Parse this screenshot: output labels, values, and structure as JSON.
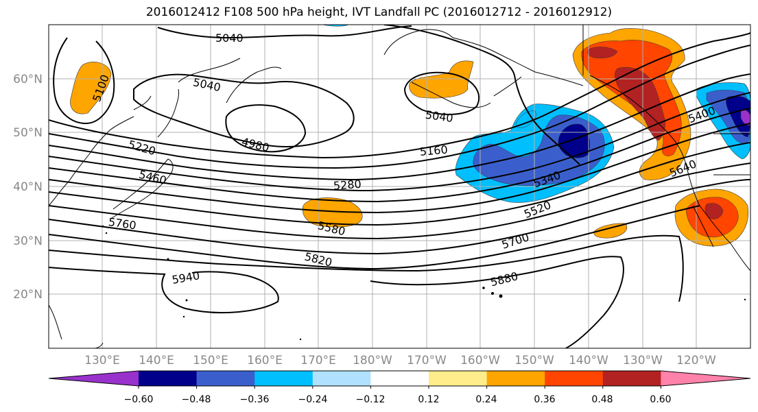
{
  "title": "2016012412 F108 500 hPa height, IVT Landfall PC (2016012712 - 2016012912)",
  "latitude_labels": [
    "60°N",
    "50°N",
    "40°N",
    "30°N",
    "20°N"
  ],
  "longitude_labels": [
    "130°E",
    "140°E",
    "150°E",
    "160°E",
    "170°E",
    "180°W",
    "170°W",
    "160°W",
    "150°W",
    "140°W",
    "130°W",
    "120°W"
  ],
  "contour_labels": [
    "5040",
    "5100",
    "5040",
    "5040",
    "4980",
    "5220",
    "5160",
    "5400",
    "5460",
    "5280",
    "5340",
    "5640",
    "5760",
    "5520",
    "5580",
    "5700",
    "5820",
    "5880",
    "5940"
  ],
  "colorbar": {
    "ticks": [
      "−0.60",
      "−0.48",
      "−0.36",
      "−0.24",
      "−0.12",
      "0.12",
      "0.24",
      "0.36",
      "0.48",
      "0.60"
    ],
    "colors": [
      "#9932cc",
      "#00008b",
      "#3a5fcd",
      "#00bfff",
      "#b0e2ff",
      "#ffffff",
      "#ffec8b",
      "#ffa500",
      "#ff4500",
      "#b22222",
      "#ff82ab"
    ]
  },
  "colors": {
    "grid": "#b0b0b0",
    "contour": "#000000",
    "coastline": "#000000",
    "axis_label": "#888888"
  }
}
